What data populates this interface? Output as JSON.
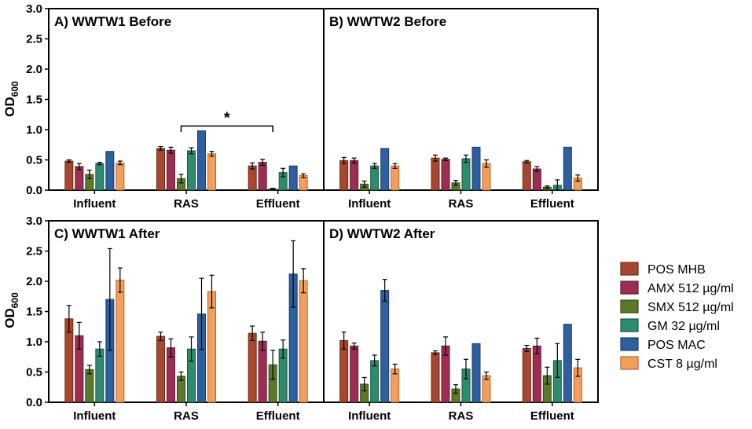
{
  "figure": {
    "ylabel_main": "OD",
    "ylabel_sub": "600"
  },
  "legend": [
    {
      "label": "POS MHB",
      "color": "#A8472F"
    },
    {
      "label": "AMX 512 µg/ml",
      "color": "#9B2E52"
    },
    {
      "label": "SMX 512 µg/ml",
      "color": "#5A7A2A"
    },
    {
      "label": "GM 32 µg/ml",
      "color": "#2E8B6E"
    },
    {
      "label": "POS MAC",
      "color": "#2E5F9E"
    },
    {
      "label": "CST 8 µg/ml",
      "color": "#F29E5C"
    }
  ],
  "chart_data": [
    {
      "type": "bar",
      "title": "A) WWTW1 Before",
      "categories": [
        "Influent",
        "RAS",
        "Effluent"
      ],
      "ylim": [
        0,
        3.0
      ],
      "yticks": [
        "0.0",
        "0.5",
        "1.0",
        "1.5",
        "2.0",
        "2.5",
        "3.0"
      ],
      "annotation": "*",
      "series": [
        {
          "name": "POS MHB",
          "values": [
            0.48,
            0.69,
            0.4
          ],
          "errors": [
            0.02,
            0.03,
            0.05
          ]
        },
        {
          "name": "AMX 512 µg/ml",
          "values": [
            0.39,
            0.66,
            0.46
          ],
          "errors": [
            0.05,
            0.05,
            0.05
          ]
        },
        {
          "name": "SMX 512 µg/ml",
          "values": [
            0.26,
            0.19,
            0.02
          ],
          "errors": [
            0.07,
            0.07,
            0.01
          ]
        },
        {
          "name": "GM 32 µg/ml",
          "values": [
            0.44,
            0.65,
            0.29
          ],
          "errors": [
            0.02,
            0.05,
            0.07
          ]
        },
        {
          "name": "POS MAC",
          "values": [
            0.64,
            0.98,
            0.4
          ],
          "errors": [
            0,
            0,
            0
          ]
        },
        {
          "name": "CST 8 µg/ml",
          "values": [
            0.45,
            0.6,
            0.24
          ],
          "errors": [
            0.03,
            0.04,
            0.03
          ]
        }
      ]
    },
    {
      "type": "bar",
      "title": "B) WWTW2 Before",
      "categories": [
        "Influent",
        "RAS",
        "Effluent"
      ],
      "ylim": [
        0,
        3.0
      ],
      "yticks": [],
      "series": [
        {
          "name": "POS MHB",
          "values": [
            0.49,
            0.53,
            0.47
          ],
          "errors": [
            0.05,
            0.05,
            0.02
          ]
        },
        {
          "name": "AMX 512 µg/ml",
          "values": [
            0.49,
            0.51,
            0.35
          ],
          "errors": [
            0.04,
            0.02,
            0.04
          ]
        },
        {
          "name": "SMX 512 µg/ml",
          "values": [
            0.1,
            0.12,
            0.05
          ],
          "errors": [
            0.05,
            0.04,
            0.02
          ]
        },
        {
          "name": "GM 32 µg/ml",
          "values": [
            0.4,
            0.52,
            0.08
          ],
          "errors": [
            0.04,
            0.06,
            0.09
          ]
        },
        {
          "name": "POS MAC",
          "values": [
            0.69,
            0.71,
            0.71
          ],
          "errors": [
            0,
            0,
            0
          ]
        },
        {
          "name": "CST 8 µg/ml",
          "values": [
            0.4,
            0.44,
            0.2
          ],
          "errors": [
            0.04,
            0.06,
            0.05
          ]
        }
      ]
    },
    {
      "type": "bar",
      "title": "C) WWTW1 After",
      "categories": [
        "Influent",
        "RAS",
        "Effluent"
      ],
      "ylim": [
        0,
        3.0
      ],
      "yticks": [
        "0.0",
        "0.5",
        "1.0",
        "1.5",
        "2.0",
        "2.5",
        "3.0"
      ],
      "series": [
        {
          "name": "POS MHB",
          "values": [
            1.38,
            1.09,
            1.14
          ],
          "errors": [
            0.22,
            0.07,
            0.12
          ]
        },
        {
          "name": "AMX 512 µg/ml",
          "values": [
            1.1,
            0.9,
            1.01
          ],
          "errors": [
            0.22,
            0.15,
            0.15
          ]
        },
        {
          "name": "SMX 512 µg/ml",
          "values": [
            0.54,
            0.43,
            0.62
          ],
          "errors": [
            0.07,
            0.07,
            0.24
          ]
        },
        {
          "name": "GM 32 µg/ml",
          "values": [
            0.88,
            0.88,
            0.88
          ],
          "errors": [
            0.12,
            0.2,
            0.15
          ]
        },
        {
          "name": "POS MAC",
          "values": [
            1.7,
            1.46,
            2.12
          ],
          "errors": [
            0.84,
            0.59,
            0.55
          ]
        },
        {
          "name": "CST 8 µg/ml",
          "values": [
            2.02,
            1.83,
            2.01
          ],
          "errors": [
            0.2,
            0.27,
            0.2
          ]
        }
      ]
    },
    {
      "type": "bar",
      "title": "D) WWTW2 After",
      "categories": [
        "Influent",
        "RAS",
        "Effluent"
      ],
      "ylim": [
        0,
        3.0
      ],
      "yticks": [],
      "series": [
        {
          "name": "POS MHB",
          "values": [
            1.02,
            0.82,
            0.89
          ],
          "errors": [
            0.14,
            0.03,
            0.05
          ]
        },
        {
          "name": "AMX 512 µg/ml",
          "values": [
            0.93,
            0.93,
            0.93
          ],
          "errors": [
            0.05,
            0.15,
            0.13
          ]
        },
        {
          "name": "SMX 512 µg/ml",
          "values": [
            0.3,
            0.22,
            0.44
          ],
          "errors": [
            0.11,
            0.07,
            0.14
          ]
        },
        {
          "name": "GM 32 µg/ml",
          "values": [
            0.69,
            0.55,
            0.69
          ],
          "errors": [
            0.09,
            0.16,
            0.28
          ]
        },
        {
          "name": "POS MAC",
          "values": [
            1.85,
            0.97,
            1.29
          ],
          "errors": [
            0.18,
            0,
            0
          ]
        },
        {
          "name": "CST 8 µg/ml",
          "values": [
            0.55,
            0.44,
            0.57
          ],
          "errors": [
            0.08,
            0.06,
            0.14
          ]
        }
      ]
    }
  ]
}
